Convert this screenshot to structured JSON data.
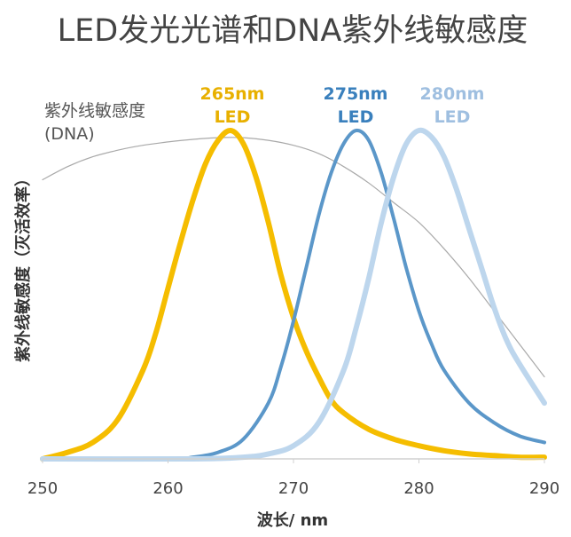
{
  "chart_data": {
    "type": "line",
    "title": "LED发光光谱和DNA紫外线敏感度",
    "xlabel": "波长/ nm",
    "ylabel": "紫外线敏感度（灭活效率）",
    "xlim": [
      250,
      290
    ],
    "ylim": [
      0,
      1
    ],
    "xticks": [
      "250",
      "260",
      "270",
      "280",
      "290"
    ],
    "grid": false,
    "series": [
      {
        "name": "DNA",
        "label_lines": [
          "紫外线敏感度",
          "(DNA)"
        ],
        "color": "#a9a9a9",
        "width": 1.2,
        "x": [
          250,
          252,
          254,
          256,
          258,
          260,
          262,
          264,
          266,
          268,
          270,
          272,
          274,
          276,
          278,
          280,
          282,
          284,
          286,
          288,
          290
        ],
        "y": [
          0.85,
          0.89,
          0.92,
          0.94,
          0.955,
          0.965,
          0.973,
          0.978,
          0.978,
          0.97,
          0.955,
          0.93,
          0.89,
          0.84,
          0.78,
          0.72,
          0.64,
          0.55,
          0.45,
          0.35,
          0.25
        ]
      },
      {
        "name": "265nm LED",
        "label_lines": [
          "265nm",
          "LED"
        ],
        "color": "#f5bd00",
        "width": 6,
        "x": [
          250,
          252,
          254,
          256,
          258,
          259,
          260,
          261,
          262,
          263,
          264,
          265,
          266,
          267,
          268,
          269,
          270,
          271,
          272,
          273,
          274,
          276,
          278,
          280,
          282,
          284,
          286,
          288,
          290
        ],
        "y": [
          0.0,
          0.02,
          0.05,
          0.12,
          0.27,
          0.38,
          0.52,
          0.66,
          0.79,
          0.9,
          0.97,
          1.0,
          0.96,
          0.86,
          0.72,
          0.56,
          0.43,
          0.33,
          0.25,
          0.18,
          0.14,
          0.09,
          0.06,
          0.04,
          0.025,
          0.015,
          0.01,
          0.005,
          0.005
        ]
      },
      {
        "name": "275nm LED",
        "label_lines": [
          "275nm",
          "LED"
        ],
        "color": "#5b97c9",
        "width": 4,
        "x": [
          250,
          260,
          262,
          264,
          266,
          268,
          269,
          270,
          271,
          272,
          273,
          274,
          275,
          276,
          277,
          278,
          279,
          280,
          281,
          282,
          284,
          286,
          288,
          290
        ],
        "y": [
          0.0,
          0.0,
          0.005,
          0.02,
          0.06,
          0.17,
          0.28,
          0.42,
          0.58,
          0.74,
          0.87,
          0.96,
          1.0,
          0.97,
          0.87,
          0.73,
          0.58,
          0.45,
          0.35,
          0.27,
          0.17,
          0.11,
          0.07,
          0.05
        ]
      },
      {
        "name": "280nm LED",
        "label_lines": [
          "280nm",
          "LED"
        ],
        "color": "#bdd6ed",
        "width": 6,
        "x": [
          250,
          262,
          266,
          268,
          270,
          272,
          274,
          275,
          276,
          277,
          278,
          279,
          280,
          281,
          282,
          283,
          284,
          285,
          286,
          287,
          288,
          290
        ],
        "y": [
          0.0,
          0.0,
          0.005,
          0.015,
          0.04,
          0.11,
          0.27,
          0.4,
          0.55,
          0.72,
          0.86,
          0.96,
          1.0,
          0.98,
          0.92,
          0.82,
          0.7,
          0.58,
          0.46,
          0.36,
          0.29,
          0.17
        ]
      }
    ]
  }
}
